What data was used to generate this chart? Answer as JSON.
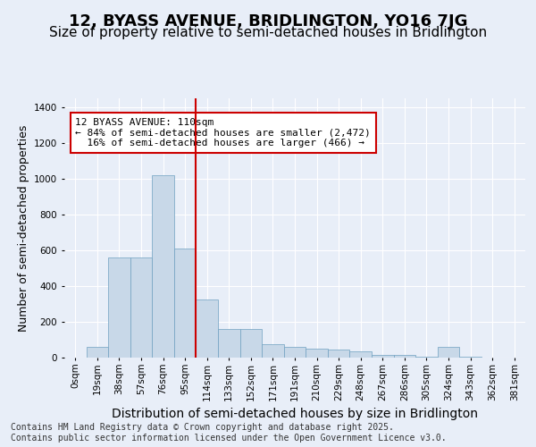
{
  "title": "12, BYASS AVENUE, BRIDLINGTON, YO16 7JG",
  "subtitle": "Size of property relative to semi-detached houses in Bridlington",
  "xlabel": "Distribution of semi-detached houses by size in Bridlington",
  "ylabel": "Number of semi-detached properties",
  "bar_values": [
    0,
    60,
    560,
    560,
    1020,
    610,
    325,
    160,
    160,
    75,
    60,
    50,
    45,
    35,
    15,
    15,
    5,
    60,
    5,
    0,
    0
  ],
  "bin_labels": [
    "0sqm",
    "19sqm",
    "38sqm",
    "57sqm",
    "76sqm",
    "95sqm",
    "114sqm",
    "133sqm",
    "152sqm",
    "171sqm",
    "191sqm",
    "210sqm",
    "229sqm",
    "248sqm",
    "267sqm",
    "286sqm",
    "305sqm",
    "324sqm",
    "343sqm",
    "362sqm",
    "381sqm"
  ],
  "bar_color": "#c8d8e8",
  "bar_edge_color": "#6fa0c0",
  "marker_bin_index": 6,
  "marker_line_color": "#cc0000",
  "annotation_text": "12 BYASS AVENUE: 110sqm\n← 84% of semi-detached houses are smaller (2,472)\n  16% of semi-detached houses are larger (466) →",
  "annotation_box_color": "#ffffff",
  "annotation_box_edge": "#cc0000",
  "ylim": [
    0,
    1450
  ],
  "yticks": [
    0,
    200,
    400,
    600,
    800,
    1000,
    1200,
    1400
  ],
  "background_color": "#e8eef8",
  "plot_bg_color": "#e8eef8",
  "grid_color": "#ffffff",
  "footer_text": "Contains HM Land Registry data © Crown copyright and database right 2025.\nContains public sector information licensed under the Open Government Licence v3.0.",
  "title_fontsize": 13,
  "subtitle_fontsize": 11,
  "xlabel_fontsize": 10,
  "ylabel_fontsize": 9,
  "tick_fontsize": 7.5,
  "annotation_fontsize": 8,
  "footer_fontsize": 7
}
